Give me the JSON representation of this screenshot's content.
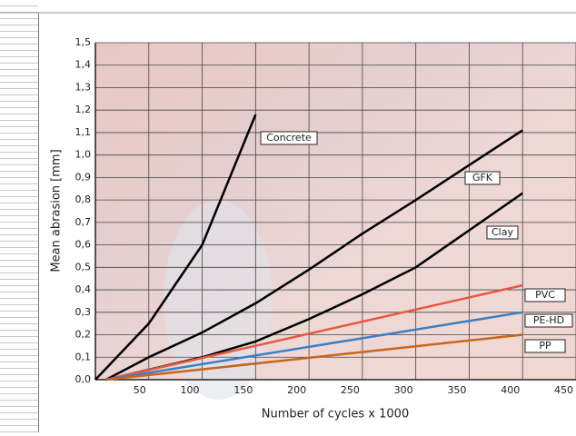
{
  "chart_data": {
    "type": "line",
    "x_label": "Number of cycles x 1000",
    "y_label": "Mean abrasion [mm]",
    "xlim": [
      0,
      450
    ],
    "ylim": [
      0,
      1.5
    ],
    "xticks": [
      50,
      100,
      150,
      200,
      250,
      300,
      350,
      400,
      450
    ],
    "yticks": [
      {
        "value": 0,
        "label": "0,0"
      },
      {
        "value": 0.1,
        "label": "0,1"
      },
      {
        "value": 0.2,
        "label": "0,2"
      },
      {
        "value": 0.3,
        "label": "0,3"
      },
      {
        "value": 0.4,
        "label": "0,4"
      },
      {
        "value": 0.5,
        "label": "0,5"
      },
      {
        "value": 0.6,
        "label": "0,6"
      },
      {
        "value": 0.7,
        "label": "0,7"
      },
      {
        "value": 0.8,
        "label": "0,8"
      },
      {
        "value": 0.9,
        "label": "0,9"
      },
      {
        "value": 1.0,
        "label": "1,0"
      },
      {
        "value": 1.1,
        "label": "1,1"
      },
      {
        "value": 1.2,
        "label": "1,2"
      },
      {
        "value": 1.3,
        "label": "1,3"
      },
      {
        "value": 1.4,
        "label": "1,4"
      },
      {
        "value": 1.5,
        "label": "1,5"
      }
    ],
    "grid": true,
    "series": [
      {
        "name": "Concrete",
        "color": "#000000",
        "x": [
          0,
          50,
          100,
          150
        ],
        "values": [
          0,
          0.25,
          0.6,
          1.18
        ]
      },
      {
        "name": "GFK",
        "color": "#000000",
        "x": [
          10,
          50,
          100,
          150,
          200,
          250,
          300,
          400
        ],
        "values": [
          0,
          0.1,
          0.21,
          0.34,
          0.49,
          0.65,
          0.8,
          1.11
        ]
      },
      {
        "name": "Clay",
        "color": "#000000",
        "x": [
          10,
          100,
          150,
          200,
          250,
          300,
          400
        ],
        "values": [
          0,
          0.1,
          0.17,
          0.27,
          0.38,
          0.5,
          0.83
        ]
      },
      {
        "name": "PVC",
        "color": "#e8583f",
        "x": [
          10,
          400
        ],
        "values": [
          0,
          0.42
        ]
      },
      {
        "name": "PE-HD",
        "color": "#3a7fc4",
        "x": [
          10,
          400
        ],
        "values": [
          0,
          0.3
        ]
      },
      {
        "name": "PP",
        "color": "#c8651b",
        "x": [
          10,
          400
        ],
        "values": [
          0,
          0.2
        ]
      }
    ]
  }
}
